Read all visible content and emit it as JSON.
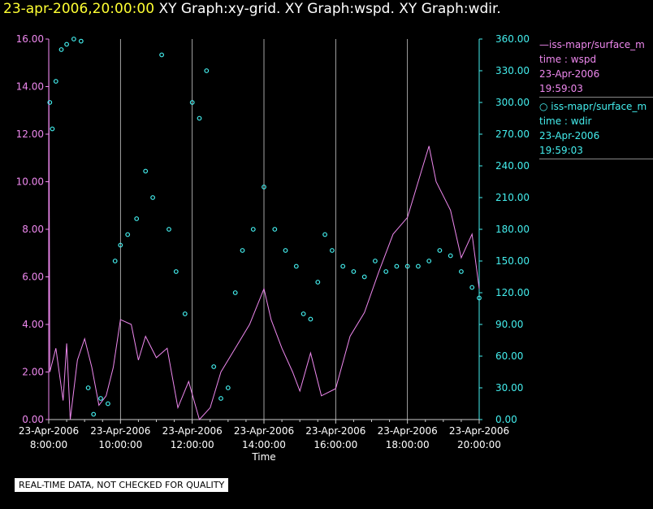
{
  "header": {
    "timestamp": "23-apr-2006,20:00:00",
    "graphs": "XY Graph:xy-grid.  XY Graph:wspd.  XY Graph:wdir."
  },
  "legend": {
    "wspd": {
      "line1": "—iss-mapr/surface_m",
      "line2": "time : wspd",
      "line3": "23-Apr-2006",
      "line4": "19:59:03"
    },
    "wdir": {
      "line1": "○ iss-mapr/surface_m",
      "line2": "time : wdir",
      "line3": "23-Apr-2006",
      "line4": "19:59:03"
    }
  },
  "notice": "REAL-TIME DATA, NOT CHECKED FOR QUALITY",
  "colors": {
    "wspd": "#ee88ee",
    "wdir": "#44eeee",
    "grid": "#cccccc",
    "axis_left": "#ee88ee",
    "axis_right": "#44eeee"
  },
  "chart_data": {
    "type": "line+scatter",
    "xlabel": "Time",
    "x_range": [
      8,
      20
    ],
    "x_ticks": [
      {
        "t": 8,
        "date": "23-Apr-2006",
        "time": "8:00:00"
      },
      {
        "t": 10,
        "date": "23-Apr-2006",
        "time": "10:00:00"
      },
      {
        "t": 12,
        "date": "23-Apr-2006",
        "time": "12:00:00"
      },
      {
        "t": 14,
        "date": "23-Apr-2006",
        "time": "14:00:00"
      },
      {
        "t": 16,
        "date": "23-Apr-2006",
        "time": "16:00:00"
      },
      {
        "t": 18,
        "date": "23-Apr-2006",
        "time": "18:00:00"
      },
      {
        "t": 20,
        "date": "23-Apr-2006",
        "time": "20:00:00"
      }
    ],
    "y_left": {
      "range": [
        0,
        16
      ],
      "ticks": [
        "0.00",
        "2.00",
        "4.00",
        "6.00",
        "8.00",
        "10.00",
        "12.00",
        "14.00",
        "16.00"
      ]
    },
    "y_right": {
      "range": [
        0,
        360
      ],
      "ticks": [
        "0.00",
        "30.00",
        "60.00",
        "90.00",
        "120.00",
        "150.00",
        "180.00",
        "210.00",
        "240.00",
        "270.00",
        "300.00",
        "330.00",
        "360.00"
      ]
    },
    "series": [
      {
        "name": "wspd",
        "style": "line",
        "axis": "left",
        "points": [
          [
            8.0,
            16.0
          ],
          [
            8.03,
            2.0
          ],
          [
            8.2,
            3.0
          ],
          [
            8.4,
            0.8
          ],
          [
            8.5,
            3.2
          ],
          [
            8.6,
            0.0
          ],
          [
            8.8,
            2.5
          ],
          [
            9.0,
            3.4
          ],
          [
            9.2,
            2.2
          ],
          [
            9.4,
            0.6
          ],
          [
            9.6,
            1.0
          ],
          [
            9.8,
            2.2
          ],
          [
            10.0,
            4.2
          ],
          [
            10.3,
            4.0
          ],
          [
            10.5,
            2.5
          ],
          [
            10.7,
            3.5
          ],
          [
            11.0,
            2.6
          ],
          [
            11.3,
            3.0
          ],
          [
            11.6,
            0.5
          ],
          [
            11.9,
            1.6
          ],
          [
            12.2,
            0.0
          ],
          [
            12.5,
            0.5
          ],
          [
            12.8,
            2.0
          ],
          [
            13.2,
            3.0
          ],
          [
            13.6,
            4.0
          ],
          [
            14.0,
            5.5
          ],
          [
            14.2,
            4.2
          ],
          [
            14.5,
            3.0
          ],
          [
            14.8,
            2.0
          ],
          [
            15.0,
            1.2
          ],
          [
            15.3,
            2.8
          ],
          [
            15.6,
            1.0
          ],
          [
            16.0,
            1.3
          ],
          [
            16.4,
            3.5
          ],
          [
            16.8,
            4.5
          ],
          [
            17.2,
            6.2
          ],
          [
            17.6,
            7.8
          ],
          [
            18.0,
            8.5
          ],
          [
            18.4,
            10.5
          ],
          [
            18.6,
            11.5
          ],
          [
            18.8,
            10.0
          ],
          [
            19.2,
            8.8
          ],
          [
            19.5,
            6.8
          ],
          [
            19.8,
            7.8
          ],
          [
            20.0,
            5.5
          ]
        ]
      },
      {
        "name": "wdir",
        "style": "scatter",
        "axis": "right",
        "points": [
          [
            8.03,
            300
          ],
          [
            8.1,
            275
          ],
          [
            8.2,
            320
          ],
          [
            8.35,
            350
          ],
          [
            8.5,
            355
          ],
          [
            8.7,
            360
          ],
          [
            8.9,
            358
          ],
          [
            9.1,
            30
          ],
          [
            9.25,
            5
          ],
          [
            9.45,
            20
          ],
          [
            9.65,
            15
          ],
          [
            9.85,
            150
          ],
          [
            10.0,
            165
          ],
          [
            10.2,
            175
          ],
          [
            10.45,
            190
          ],
          [
            10.7,
            235
          ],
          [
            10.9,
            210
          ],
          [
            11.15,
            345
          ],
          [
            11.35,
            180
          ],
          [
            11.55,
            140
          ],
          [
            11.8,
            100
          ],
          [
            12.0,
            300
          ],
          [
            12.2,
            285
          ],
          [
            12.4,
            330
          ],
          [
            12.6,
            50
          ],
          [
            12.8,
            20
          ],
          [
            13.0,
            30
          ],
          [
            13.2,
            120
          ],
          [
            13.4,
            160
          ],
          [
            13.7,
            180
          ],
          [
            14.0,
            220
          ],
          [
            14.3,
            180
          ],
          [
            14.6,
            160
          ],
          [
            14.9,
            145
          ],
          [
            15.1,
            100
          ],
          [
            15.3,
            95
          ],
          [
            15.5,
            130
          ],
          [
            15.7,
            175
          ],
          [
            15.9,
            160
          ],
          [
            16.2,
            145
          ],
          [
            16.5,
            140
          ],
          [
            16.8,
            135
          ],
          [
            17.1,
            150
          ],
          [
            17.4,
            140
          ],
          [
            17.7,
            145
          ],
          [
            18.0,
            145
          ],
          [
            18.3,
            145
          ],
          [
            18.6,
            150
          ],
          [
            18.9,
            160
          ],
          [
            19.2,
            155
          ],
          [
            19.5,
            140
          ],
          [
            19.8,
            125
          ],
          [
            20.0,
            115
          ]
        ]
      }
    ]
  }
}
